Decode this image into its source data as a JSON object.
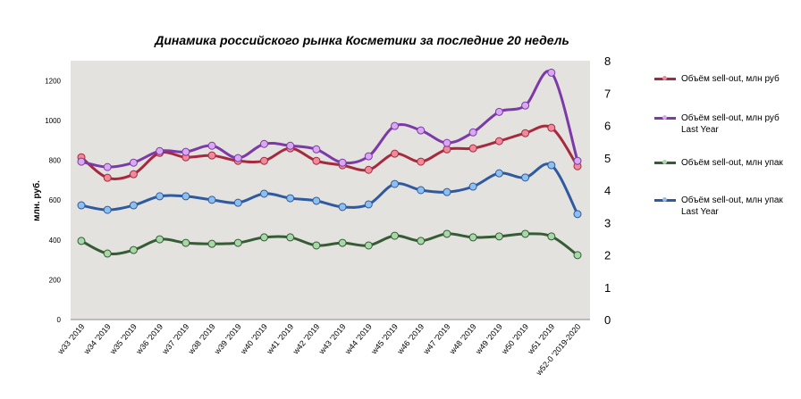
{
  "chart_data": {
    "type": "line",
    "title": "Динамика российского рынка Косметики за последние 20 недель",
    "ylabel": "млн. руб.",
    "ylim": [
      0,
      1300
    ],
    "y2lim": [
      0,
      8
    ],
    "yticks": [
      0,
      200,
      400,
      600,
      800,
      1000,
      1200
    ],
    "y2ticks": [
      0,
      1,
      2,
      3,
      4,
      5,
      6,
      7,
      8
    ],
    "legend_position": "right",
    "categories": [
      "w33 '2019",
      "w34 '2019",
      "w35 '2019",
      "w36 '2019",
      "w37 '2019",
      "w38 '2019",
      "w39 '2019",
      "w40 '2019",
      "w41 '2019",
      "w42 '2019",
      "w43 '2019",
      "w44 '2019",
      "w45 '2019",
      "w46 '2019",
      "w47 '2019",
      "w48 '2019",
      "w49 '2019",
      "w50 '2019",
      "w51 '2019",
      "w52-0 '2019-2020"
    ],
    "series": [
      {
        "name": "Объём sell-out, млн руб",
        "axis": "left",
        "color": "#a52a3e",
        "marker": "#f08a9a",
        "values": [
          815,
          712,
          730,
          837,
          815,
          824,
          797,
          797,
          860,
          797,
          775,
          752,
          833,
          793,
          855,
          860,
          896,
          936,
          963,
          770
        ]
      },
      {
        "name": "Объём sell-out, млн руб Last Year",
        "axis": "left",
        "color": "#7b3aa8",
        "marker": "#d9a8f0",
        "values": [
          793,
          766,
          788,
          846,
          842,
          873,
          811,
          882,
          873,
          855,
          788,
          820,
          972,
          950,
          887,
          940,
          1043,
          1075,
          1240,
          797
        ]
      },
      {
        "name": "Объём sell-out, млн упак",
        "axis": "right",
        "color": "#355c35",
        "marker": "#a8d8a8",
        "values": [
          2.43,
          2.04,
          2.15,
          2.48,
          2.37,
          2.34,
          2.37,
          2.54,
          2.54,
          2.29,
          2.37,
          2.29,
          2.59,
          2.43,
          2.65,
          2.54,
          2.57,
          2.65,
          2.57,
          1.99
        ]
      },
      {
        "name": "Объём sell-out, млн упак Last Year",
        "axis": "right",
        "color": "#2f5aa0",
        "marker": "#8ec0ee",
        "values": [
          3.53,
          3.39,
          3.53,
          3.81,
          3.81,
          3.7,
          3.61,
          3.89,
          3.75,
          3.67,
          3.48,
          3.56,
          4.19,
          4.0,
          3.94,
          4.11,
          4.52,
          4.39,
          4.77,
          3.26
        ]
      }
    ]
  }
}
